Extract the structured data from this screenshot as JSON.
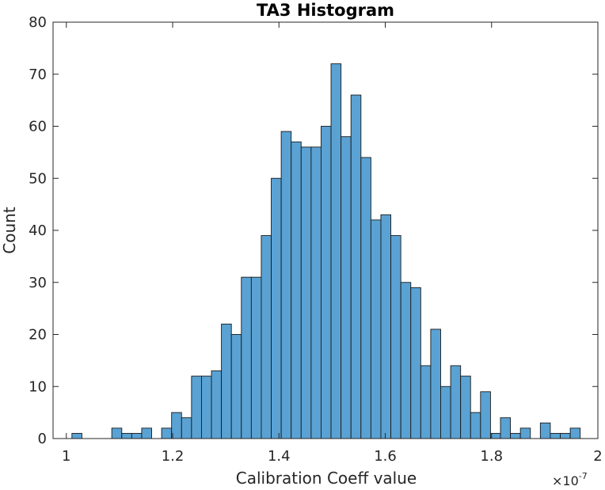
{
  "chart_data": {
    "type": "bar",
    "subtype": "histogram",
    "title": "TA3 Histogram",
    "xlabel": "Calibration Coeff value",
    "ylabel": "Count",
    "x_exponent_label": "×10",
    "x_exponent_power": "-7",
    "xlim": [
      0.975,
      2.0
    ],
    "ylim": [
      0,
      80
    ],
    "x_ticks": [
      1,
      1.2,
      1.4,
      1.6,
      1.8,
      2
    ],
    "x_tick_labels": [
      "1",
      "1.2",
      "1.4",
      "1.6",
      "1.8",
      "2"
    ],
    "y_ticks": [
      0,
      10,
      20,
      30,
      40,
      50,
      60,
      70,
      80
    ],
    "y_tick_labels": [
      "0",
      "10",
      "20",
      "30",
      "40",
      "50",
      "60",
      "70",
      "80"
    ],
    "bin_start": 1.0105,
    "bin_width": 0.01875,
    "counts": [
      1,
      0,
      0,
      0,
      2,
      1,
      1,
      2,
      0,
      2,
      5,
      4,
      12,
      12,
      13,
      22,
      20,
      31,
      31,
      39,
      50,
      59,
      57,
      56,
      56,
      60,
      72,
      58,
      66,
      54,
      42,
      43,
      39,
      30,
      29,
      14,
      21,
      10,
      14,
      12,
      5,
      9,
      1,
      4,
      1,
      2,
      0,
      3,
      1,
      1,
      2
    ],
    "grid": false,
    "bar_color": "#5aa2d3",
    "edge_color": "#1a1a1a",
    "axis_color": "#262626"
  }
}
